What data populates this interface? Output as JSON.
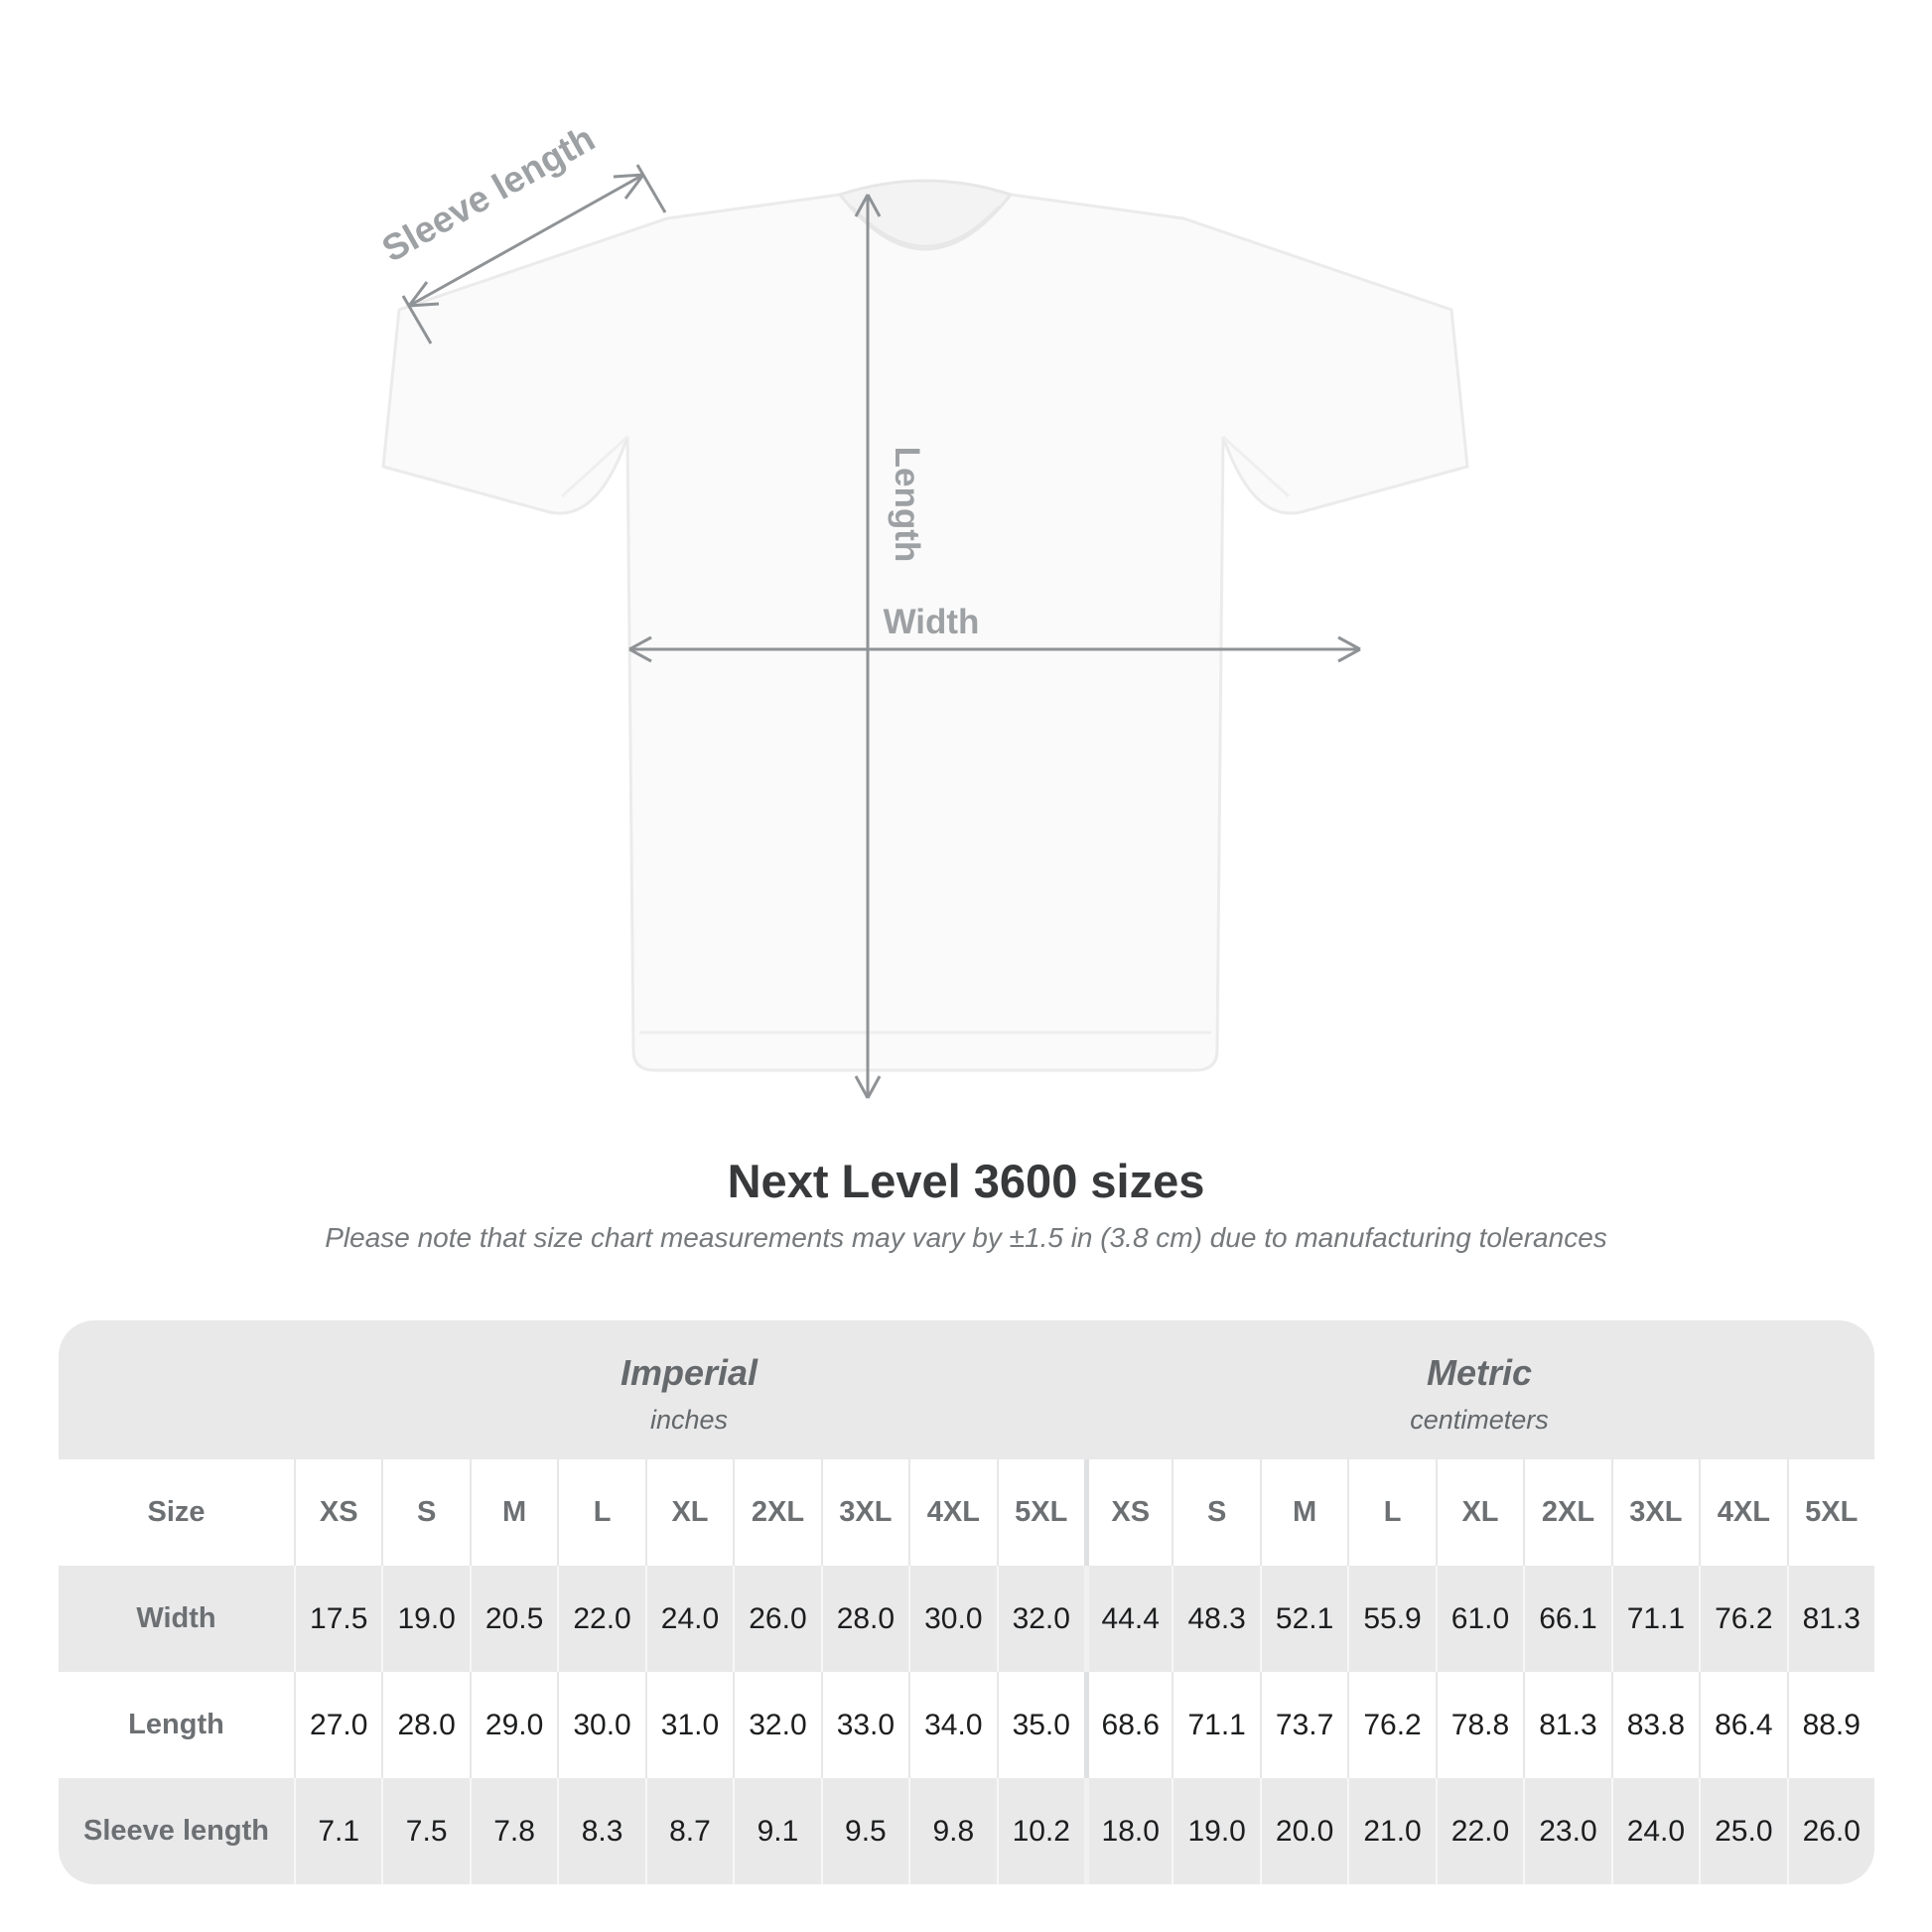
{
  "diagram": {
    "labels": {
      "sleeve_length": "Sleeve length",
      "length": "Length",
      "width": "Width"
    },
    "annotation_color": "#8f9396",
    "annotation_text_color": "#9da1a4",
    "shirt_fill": "#fafafa"
  },
  "header": {
    "title": "Next Level 3600 sizes",
    "subtitle": "Please note that size chart measurements may vary by ±1.5 in (3.8 cm) due to manufacturing tolerances"
  },
  "chart_data": {
    "type": "table",
    "title": "Next Level 3600 sizes",
    "note": "Please note that size chart measurements may vary by ±1.5 in (3.8 cm) due to manufacturing tolerances",
    "size_label": "Size",
    "sizes": [
      "XS",
      "S",
      "M",
      "L",
      "XL",
      "2XL",
      "3XL",
      "4XL",
      "5XL"
    ],
    "groups": [
      {
        "label": "Imperial",
        "sublabel": "inches"
      },
      {
        "label": "Metric",
        "sublabel": "centimeters"
      }
    ],
    "rows": [
      {
        "label": "Width",
        "imperial": [
          "17.5",
          "19.0",
          "20.5",
          "22.0",
          "24.0",
          "26.0",
          "28.0",
          "30.0",
          "32.0"
        ],
        "metric": [
          "44.4",
          "48.3",
          "52.1",
          "55.9",
          "61.0",
          "66.1",
          "71.1",
          "76.2",
          "81.3"
        ]
      },
      {
        "label": "Length",
        "imperial": [
          "27.0",
          "28.0",
          "29.0",
          "30.0",
          "31.0",
          "32.0",
          "33.0",
          "34.0",
          "35.0"
        ],
        "metric": [
          "68.6",
          "71.1",
          "73.7",
          "76.2",
          "78.8",
          "81.3",
          "83.8",
          "86.4",
          "88.9"
        ]
      },
      {
        "label": "Sleeve length",
        "imperial": [
          "7.1",
          "7.5",
          "7.8",
          "8.3",
          "8.7",
          "9.1",
          "9.5",
          "9.8",
          "10.2"
        ],
        "metric": [
          "18.0",
          "19.0",
          "20.0",
          "21.0",
          "22.0",
          "23.0",
          "24.0",
          "25.0",
          "26.0"
        ]
      }
    ],
    "layout": {
      "grid": false,
      "legend": "none",
      "row_striping": [
        "white",
        "gray",
        "white",
        "gray"
      ]
    }
  }
}
